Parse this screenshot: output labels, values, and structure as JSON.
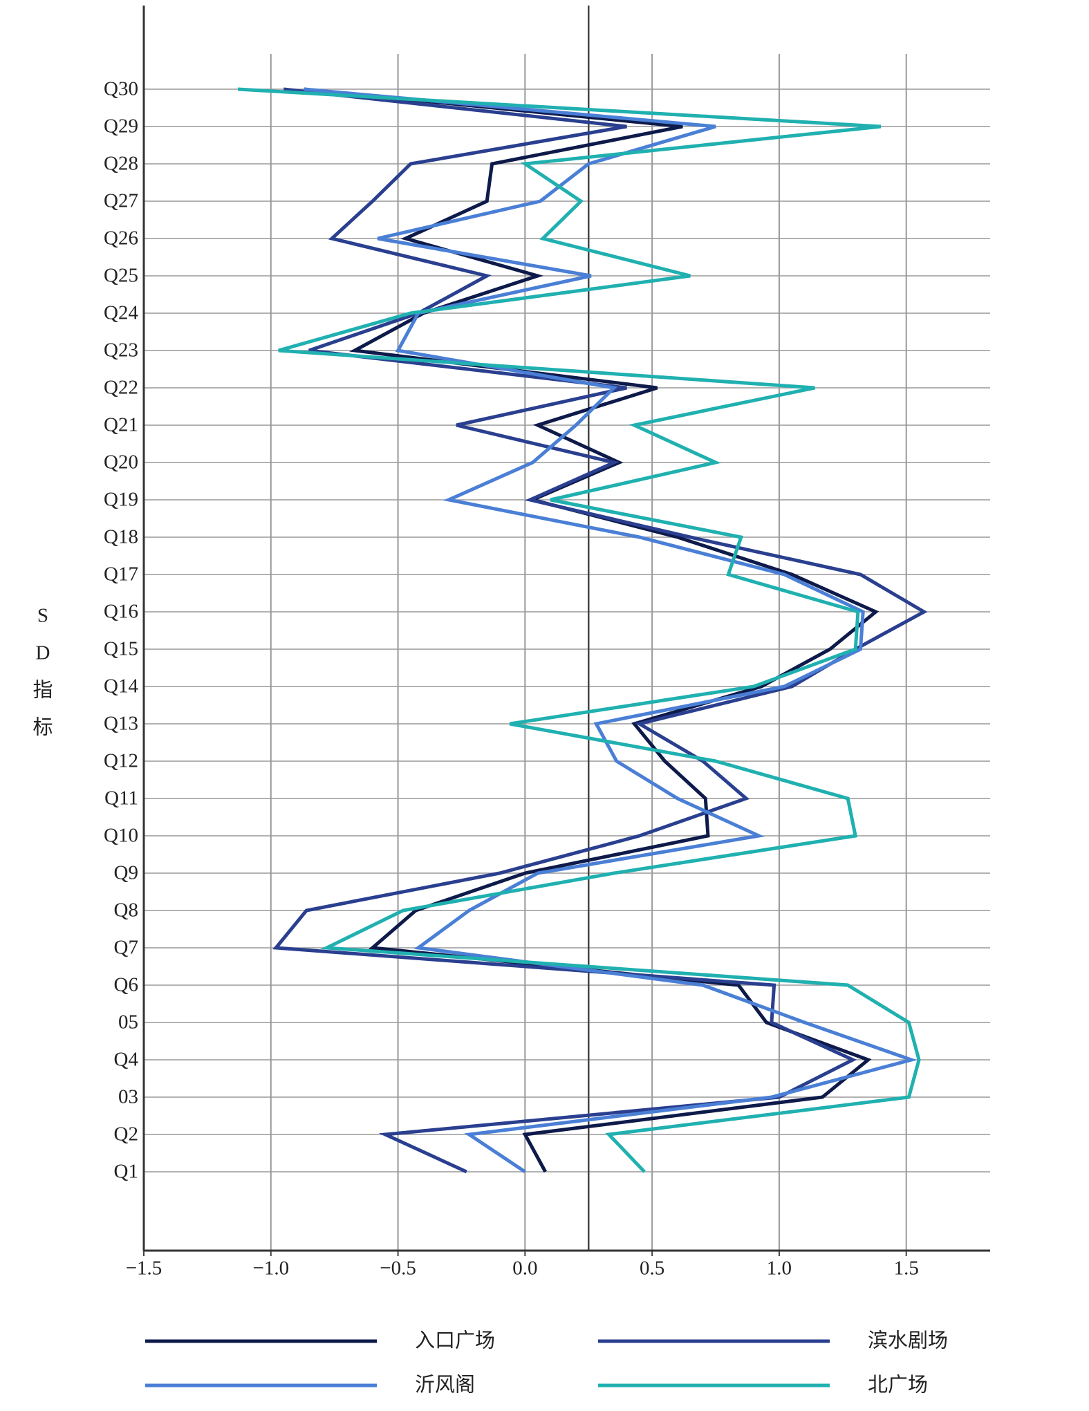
{
  "chart_data": {
    "type": "line",
    "orientation": "horizontal",
    "y_label_chars": [
      "S",
      "D",
      "指",
      "标"
    ],
    "categories": [
      "Q1",
      "Q2",
      "03",
      "Q4",
      "05",
      "Q6",
      "Q7",
      "Q8",
      "Q9",
      "Q10",
      "Q11",
      "Q12",
      "Q13",
      "Q14",
      "Q15",
      "Q16",
      "Q17",
      "Q18",
      "Q19",
      "Q20",
      "Q21",
      "Q22",
      "Q23",
      "Q24",
      "Q25",
      "Q26",
      "Q27",
      "Q28",
      "Q29",
      "Q30"
    ],
    "series": [
      {
        "name": "入口广场",
        "color": "#0d1a4a",
        "values": [
          0.08,
          0.0,
          1.17,
          1.35,
          0.95,
          0.84,
          -0.6,
          -0.43,
          0.0,
          0.72,
          0.71,
          0.55,
          0.43,
          0.93,
          1.2,
          1.38,
          1.05,
          0.6,
          0.03,
          0.37,
          0.05,
          0.52,
          -0.67,
          -0.4,
          0.05,
          -0.47,
          -0.15,
          -0.13,
          0.62,
          -0.87
        ]
      },
      {
        "name": "滨水剧场",
        "color": "#2a3f8f",
        "values": [
          -0.23,
          -0.55,
          1.0,
          1.29,
          0.97,
          0.98,
          -0.98,
          -0.86,
          -0.1,
          0.45,
          0.87,
          0.7,
          0.45,
          1.05,
          1.3,
          1.57,
          1.32,
          0.65,
          0.02,
          0.35,
          -0.27,
          0.4,
          -0.85,
          -0.42,
          -0.15,
          -0.76,
          -0.6,
          -0.45,
          0.4,
          -0.95
        ]
      },
      {
        "name": "沂风阁",
        "color": "#4a7fd6",
        "values": [
          0.0,
          -0.22,
          0.97,
          1.52,
          1.1,
          0.7,
          -0.42,
          -0.22,
          0.05,
          0.92,
          0.6,
          0.36,
          0.28,
          1.02,
          1.32,
          1.33,
          1.02,
          0.45,
          -0.3,
          0.03,
          0.2,
          0.35,
          -0.5,
          -0.42,
          0.26,
          -0.58,
          0.06,
          0.25,
          0.75,
          -0.87
        ]
      },
      {
        "name": "北广场",
        "color": "#20b0b0",
        "values": [
          0.47,
          0.33,
          1.51,
          1.55,
          1.51,
          1.27,
          -0.78,
          -0.48,
          0.35,
          1.3,
          1.27,
          0.75,
          -0.06,
          0.9,
          1.3,
          1.31,
          0.8,
          0.85,
          0.1,
          0.75,
          0.43,
          1.14,
          -0.97,
          -0.45,
          0.65,
          0.07,
          0.22,
          0.0,
          1.4,
          -1.13
        ]
      }
    ],
    "xlim": [
      -1.5,
      1.83
    ],
    "xticks": [
      {
        "value": -1.5,
        "label": "−1.5"
      },
      {
        "value": -1.0,
        "label": "−1.0"
      },
      {
        "value": -0.5,
        "label": "−0.5"
      },
      {
        "value": 0,
        "label": "0.0"
      },
      {
        "value": 0.5,
        "label": "0.5"
      },
      {
        "value": 1.0,
        "label": "1.0"
      },
      {
        "value": 1.5,
        "label": "1.5"
      }
    ],
    "reference_x": 0.25,
    "grid": true
  }
}
